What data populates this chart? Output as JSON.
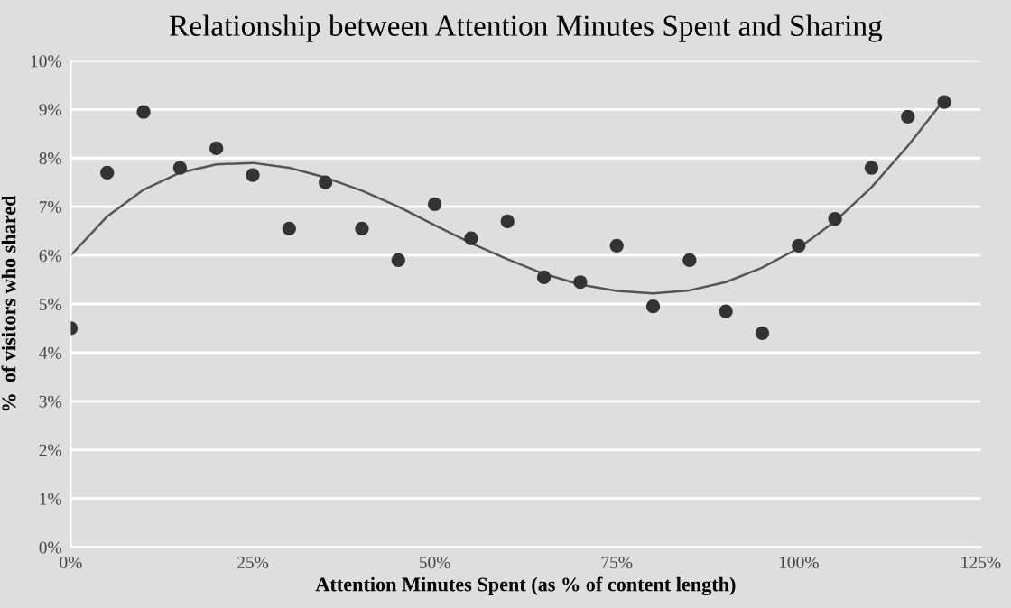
{
  "chart_data": {
    "type": "scatter",
    "title": "Relationship between Attention Minutes Spent and Sharing",
    "xlabel": "Attention Minutes Spent (as % of content length)",
    "ylabel": "%  of visitors who shared",
    "grid": "y",
    "series": [
      {
        "marker": "circle",
        "color": "#333333",
        "x": [
          0,
          5,
          10,
          15,
          20,
          25,
          30,
          35,
          40,
          45,
          50,
          55,
          60,
          65,
          70,
          75,
          80,
          85,
          90,
          95,
          100,
          105,
          110,
          115,
          120
        ],
        "values": [
          4.5,
          7.7,
          8.95,
          7.8,
          8.2,
          7.65,
          6.55,
          7.5,
          6.55,
          5.9,
          7.05,
          6.35,
          6.7,
          5.55,
          5.45,
          6.2,
          4.95,
          5.9,
          4.85,
          4.4,
          6.2,
          6.75,
          7.8,
          8.85,
          9.15
        ]
      },
      {
        "type": "line",
        "marker": "none",
        "color": "#555555",
        "x": [
          0,
          5,
          10,
          15,
          20,
          25,
          30,
          35,
          40,
          45,
          50,
          55,
          60,
          65,
          70,
          75,
          80,
          85,
          90,
          95,
          100,
          105,
          110,
          115,
          120
        ],
        "values": [
          6.0,
          6.8,
          7.35,
          7.7,
          7.87,
          7.9,
          7.8,
          7.6,
          7.33,
          7.0,
          6.62,
          6.25,
          5.92,
          5.62,
          5.4,
          5.27,
          5.22,
          5.28,
          5.45,
          5.75,
          6.15,
          6.7,
          7.4,
          8.25,
          9.2
        ]
      }
    ],
    "xlim": [
      0,
      125
    ],
    "xticks": [
      {
        "value": 0,
        "label": "0%"
      },
      {
        "value": 25,
        "label": "25%"
      },
      {
        "value": 50,
        "label": "50%"
      },
      {
        "value": 75,
        "label": "75%"
      },
      {
        "value": 100,
        "label": "100%"
      },
      {
        "value": 125,
        "label": "125%"
      }
    ],
    "ylim": [
      0,
      10
    ],
    "yticks": [
      {
        "value": 0,
        "label": "0%"
      },
      {
        "value": 1,
        "label": "1%"
      },
      {
        "value": 2,
        "label": "2%"
      },
      {
        "value": 3,
        "label": "3%"
      },
      {
        "value": 4,
        "label": "4%"
      },
      {
        "value": 5,
        "label": "5%"
      },
      {
        "value": 6,
        "label": "6%"
      },
      {
        "value": 7,
        "label": "7%"
      },
      {
        "value": 8,
        "label": "8%"
      },
      {
        "value": 9,
        "label": "9%"
      },
      {
        "value": 10,
        "label": "10%"
      }
    ]
  }
}
